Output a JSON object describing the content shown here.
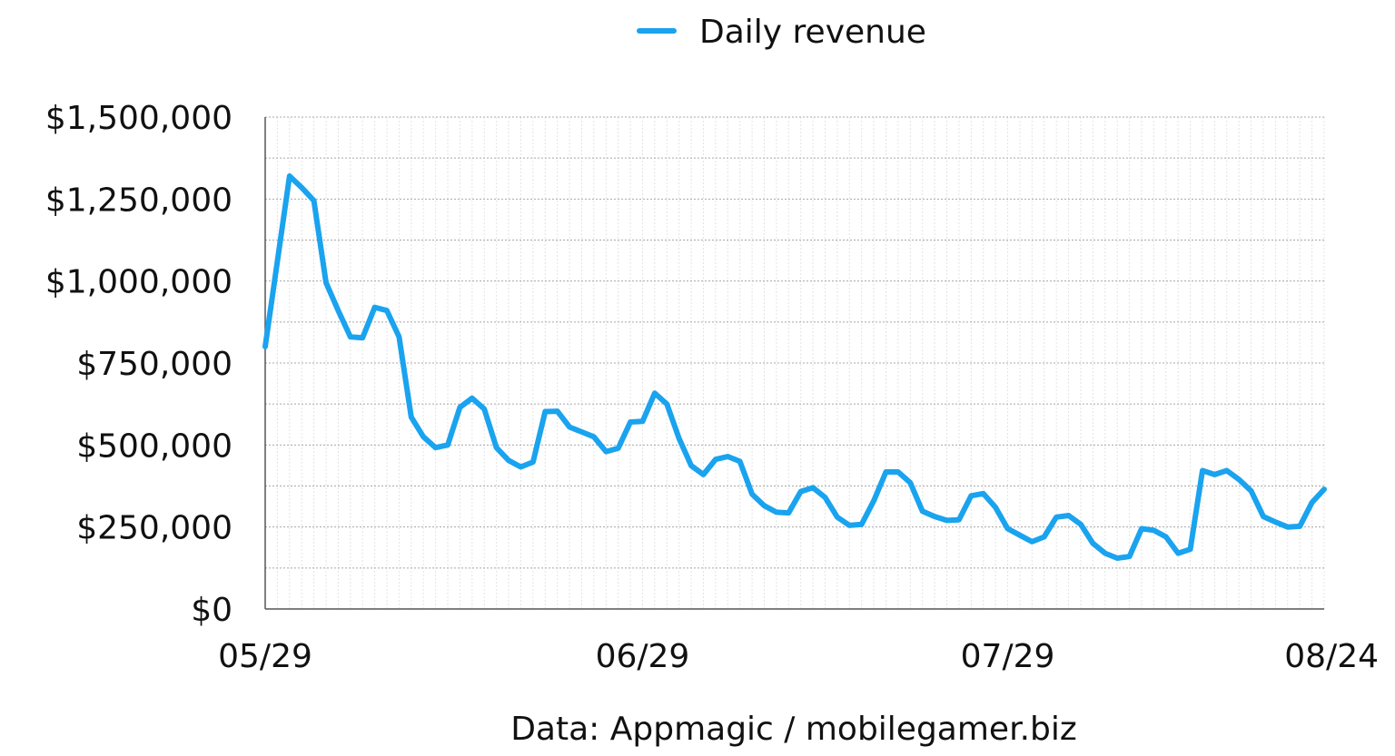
{
  "chart_data": {
    "type": "line",
    "title": "",
    "xlabel": "",
    "ylabel": "",
    "source": "Data: Appmagic / mobilegamer.biz",
    "legend": {
      "position": "top-center"
    },
    "grid": true,
    "line_color": "#1aa3ee",
    "ylim": [
      0,
      1500000
    ],
    "y_ticks": [
      0,
      250000,
      500000,
      750000,
      1000000,
      1250000,
      1500000
    ],
    "y_tick_labels": [
      "$0",
      "$250,000",
      "$500,000",
      "$750,000",
      "$1,000,000",
      "$1,250,000",
      "$1,500,000"
    ],
    "x_tick_labels": [
      {
        "label": "05/29",
        "day": 0
      },
      {
        "label": "06/29",
        "day": 31
      },
      {
        "label": "07/29",
        "day": 61
      },
      {
        "label": "08/24",
        "day": 87
      }
    ],
    "series": [
      {
        "name": "Daily revenue",
        "values": [
          800000,
          1060000,
          1320000,
          1285000,
          1245000,
          995000,
          910000,
          830000,
          827000,
          920000,
          910000,
          830000,
          585000,
          525000,
          492000,
          500000,
          615000,
          643000,
          610000,
          492000,
          453000,
          433000,
          448000,
          602000,
          603000,
          555000,
          540000,
          525000,
          480000,
          490000,
          570000,
          572000,
          658000,
          625000,
          520000,
          437000,
          410000,
          456000,
          465000,
          450000,
          350000,
          315000,
          295000,
          293000,
          358000,
          370000,
          340000,
          280000,
          255000,
          258000,
          330000,
          418000,
          418000,
          385000,
          298000,
          282000,
          270000,
          272000,
          345000,
          352000,
          310000,
          245000,
          225000,
          205000,
          220000,
          280000,
          285000,
          258000,
          200000,
          170000,
          155000,
          160000,
          245000,
          240000,
          220000,
          170000,
          182000,
          422000,
          410000,
          422000,
          395000,
          360000,
          282000,
          265000,
          250000,
          252000,
          325000,
          365000
        ]
      }
    ]
  }
}
